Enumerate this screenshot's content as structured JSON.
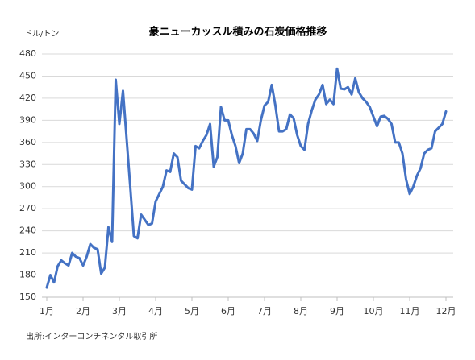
{
  "chart_data": {
    "type": "line",
    "title": "豪ニューカッスル積みの石炭価格推移",
    "y_unit": "ドル/トン",
    "source": "出所:インターコンチネンタル取引所",
    "color": "#4472c4",
    "grid": true,
    "ylim": [
      150,
      480
    ],
    "yticks": [
      150,
      180,
      210,
      240,
      270,
      300,
      330,
      360,
      390,
      420,
      450,
      480
    ],
    "categories": [
      "1月",
      null,
      null,
      null,
      null,
      null,
      null,
      null,
      null,
      null,
      "2月",
      null,
      null,
      null,
      null,
      null,
      null,
      null,
      null,
      null,
      "3月",
      null,
      null,
      null,
      null,
      null,
      null,
      null,
      null,
      null,
      "4月",
      null,
      null,
      null,
      null,
      null,
      null,
      null,
      null,
      null,
      "5月",
      null,
      null,
      null,
      null,
      null,
      null,
      null,
      null,
      null,
      "6月",
      null,
      null,
      null,
      null,
      null,
      null,
      null,
      null,
      null,
      "7月",
      null,
      null,
      null,
      null,
      null,
      null,
      null,
      null,
      null,
      "8月",
      null,
      null,
      null,
      null,
      null,
      null,
      null,
      null,
      null,
      "9月",
      null,
      null,
      null,
      null,
      null,
      null,
      null,
      null,
      null,
      "10月",
      null,
      null,
      null,
      null,
      null,
      null,
      null,
      null,
      null,
      "11月",
      null,
      null,
      null,
      null,
      null,
      null,
      null,
      null,
      null,
      "12月"
    ],
    "values": [
      163,
      180,
      170,
      192,
      200,
      196,
      193,
      210,
      205,
      203,
      193,
      205,
      222,
      217,
      215,
      182,
      190,
      245,
      225,
      445,
      385,
      430,
      365,
      300,
      233,
      230,
      262,
      255,
      248,
      250,
      280,
      290,
      300,
      322,
      320,
      345,
      340,
      308,
      303,
      298,
      296,
      355,
      352,
      362,
      370,
      385,
      327,
      340,
      408,
      390,
      390,
      370,
      355,
      332,
      345,
      378,
      378,
      372,
      362,
      390,
      410,
      415,
      438,
      410,
      375,
      375,
      378,
      398,
      393,
      370,
      355,
      350,
      385,
      403,
      418,
      425,
      438,
      412,
      418,
      412,
      460,
      433,
      432,
      435,
      425,
      447,
      428,
      420,
      415,
      408,
      395,
      382,
      395,
      396,
      392,
      385,
      360,
      360,
      345,
      310,
      290,
      300,
      315,
      325,
      345,
      350,
      352,
      375,
      380,
      385,
      402
    ]
  }
}
